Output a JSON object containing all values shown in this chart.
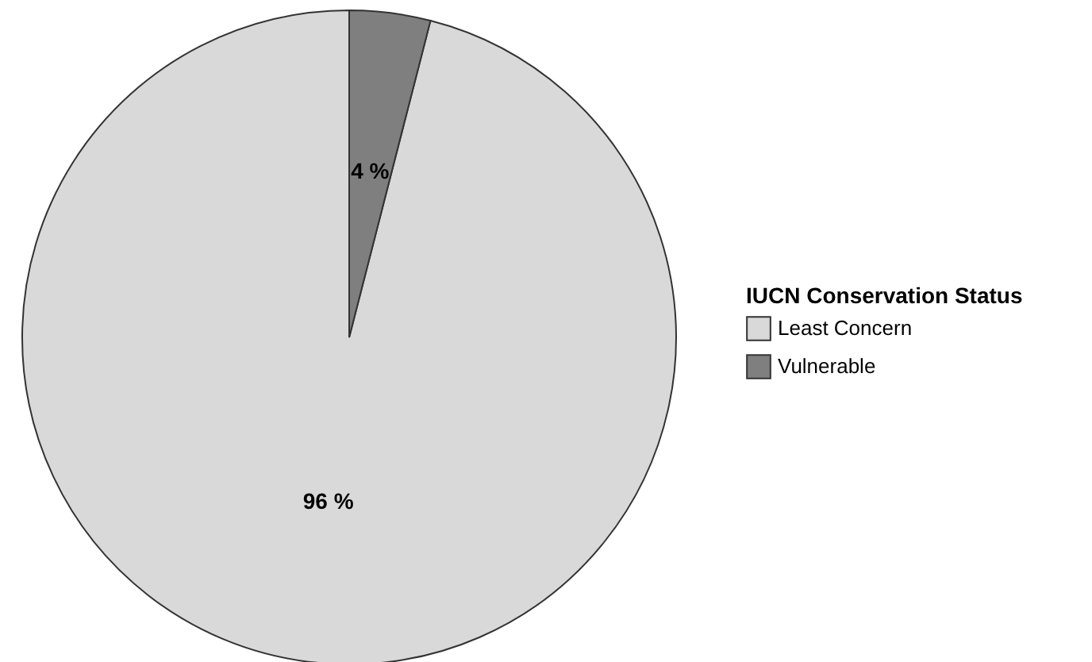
{
  "chart_data": {
    "type": "pie",
    "legend_title": "IUCN Conservation Status",
    "categories": [
      "Least Concern",
      "Vulnerable"
    ],
    "values": [
      96,
      4
    ],
    "colors": [
      "#d9d9d9",
      "#7f7f7f"
    ],
    "value_labels": [
      "96 %",
      "4 %"
    ],
    "legend": "right"
  }
}
